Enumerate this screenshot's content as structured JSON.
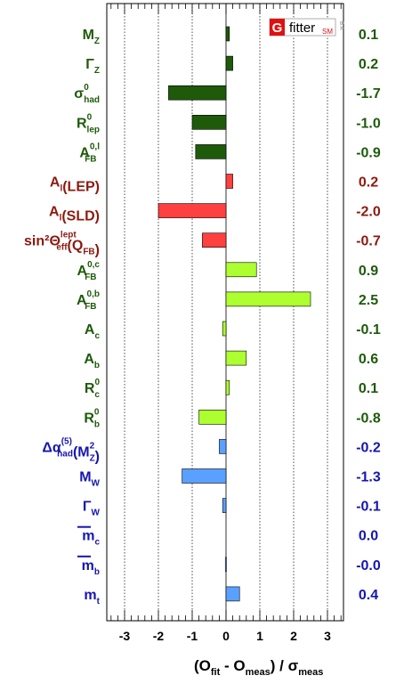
{
  "chart_data": {
    "type": "bar",
    "orientation": "horizontal",
    "xlabel_parts": {
      "open": "(O",
      "fit": "fit",
      "minus": " - O",
      "meas": "meas",
      "close": ") / σ",
      "meas2": "meas"
    },
    "xlim": [
      -3.5,
      3.5
    ],
    "xticks": [
      -3,
      -2,
      -1,
      0,
      1,
      2,
      3
    ],
    "grid": "vertical dotted at integer ticks",
    "logo": {
      "g": "G",
      "text": "fitter",
      "sm": "SM",
      "vertical": "B A"
    },
    "colors": {
      "dark_green": "#1e5a0a",
      "light_green": "#adff2f",
      "dark_red": "#8b1a0f",
      "red": "#ff4040",
      "dark_blue": "#1515b0",
      "light_blue": "#5aa0ff"
    },
    "observables": [
      {
        "base": "M",
        "sub": "Z",
        "sup": "",
        "value": 0.1,
        "label": "0.1",
        "group": "green",
        "bar": "dark_green"
      },
      {
        "base": "Γ",
        "sub": "Z",
        "sup": "",
        "value": 0.2,
        "label": "0.2",
        "group": "green",
        "bar": "dark_green"
      },
      {
        "base": "σ",
        "sub": "had",
        "sup": "0",
        "value": -1.7,
        "label": "-1.7",
        "group": "green",
        "bar": "dark_green"
      },
      {
        "base": "R",
        "sub": "lep",
        "sup": "0",
        "value": -1.0,
        "label": "-1.0",
        "group": "green",
        "bar": "dark_green"
      },
      {
        "base": "A",
        "sub": "FB",
        "sup": "0,l",
        "value": -0.9,
        "label": "-0.9",
        "group": "green",
        "bar": "dark_green"
      },
      {
        "base": "A",
        "sub": "l",
        "sup": "",
        "suffix": "(LEP)",
        "value": 0.2,
        "label": "0.2",
        "group": "red",
        "bar": "red"
      },
      {
        "base": "A",
        "sub": "l",
        "sup": "",
        "suffix": "(SLD)",
        "value": -2.0,
        "label": "-2.0",
        "group": "red",
        "bar": "red"
      },
      {
        "base": "sin²Θ",
        "sub": "eff",
        "sup": "lept",
        "suffix": "(Q",
        "suffix_sub": "FB",
        "suffix_end": ")",
        "value": -0.7,
        "label": "-0.7",
        "group": "red",
        "bar": "red"
      },
      {
        "base": "A",
        "sub": "FB",
        "sup": "0,c",
        "value": 0.9,
        "label": "0.9",
        "group": "green",
        "bar": "light_green"
      },
      {
        "base": "A",
        "sub": "FB",
        "sup": "0,b",
        "value": 2.5,
        "label": "2.5",
        "group": "green",
        "bar": "light_green"
      },
      {
        "base": "A",
        "sub": "c",
        "sup": "",
        "value": -0.1,
        "label": "-0.1",
        "group": "green",
        "bar": "light_green"
      },
      {
        "base": "A",
        "sub": "b",
        "sup": "",
        "value": 0.6,
        "label": "0.6",
        "group": "green",
        "bar": "light_green"
      },
      {
        "base": "R",
        "sub": "c",
        "sup": "0",
        "value": 0.1,
        "label": "0.1",
        "group": "green",
        "bar": "light_green"
      },
      {
        "base": "R",
        "sub": "b",
        "sup": "0",
        "value": -0.8,
        "label": "-0.8",
        "group": "green",
        "bar": "light_green"
      },
      {
        "base": "Δα",
        "sub": "had",
        "sup": "(5)",
        "suffix": "(M",
        "suffix_sub": "Z",
        "suffix_sup": "2",
        "suffix_end": ")",
        "value": -0.2,
        "label": "-0.2",
        "group": "blue",
        "bar": "light_blue"
      },
      {
        "base": "M",
        "sub": "W",
        "sup": "",
        "value": -1.3,
        "label": "-1.3",
        "group": "blue",
        "bar": "light_blue"
      },
      {
        "base": "Γ",
        "sub": "W",
        "sup": "",
        "value": -0.1,
        "label": "-0.1",
        "group": "blue",
        "bar": "light_blue"
      },
      {
        "base": "m",
        "overline": true,
        "sub": "c",
        "sup": "",
        "value": 0.0,
        "label": "0.0",
        "group": "blue",
        "bar": "light_blue"
      },
      {
        "base": "m",
        "overline": true,
        "sub": "b",
        "sup": "",
        "value": -0.02,
        "label": "-0.0",
        "group": "blue",
        "bar": "light_blue"
      },
      {
        "base": "m",
        "sub": "t",
        "sup": "",
        "value": 0.4,
        "label": "0.4",
        "group": "blue",
        "bar": "light_blue"
      }
    ]
  }
}
